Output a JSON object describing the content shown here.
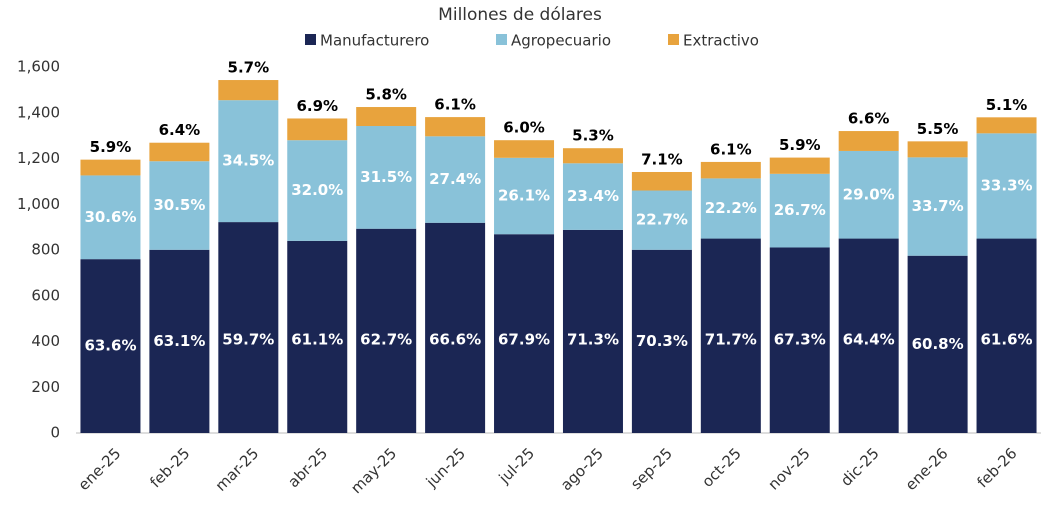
{
  "chart_data": {
    "type": "stacked_bar",
    "title": "Millones de dólares",
    "categories": [
      "ene-25",
      "feb-25",
      "mar-25",
      "abr-25",
      "may-25",
      "jun-25",
      "jul-25",
      "ago-25",
      "sep-25",
      "oct-25",
      "nov-25",
      "dic-25",
      "ene-26",
      "feb-26"
    ],
    "series": [
      {
        "name": "Manufacturero",
        "color": "#1b2654",
        "values": [
          760,
          801,
          922,
          840,
          893,
          919,
          869,
          888,
          801,
          850,
          811,
          850,
          775,
          850
        ],
        "shares": [
          "63.6%",
          "63.1%",
          "59.7%",
          "61.1%",
          "62.7%",
          "66.6%",
          "67.9%",
          "71.3%",
          "70.3%",
          "71.7%",
          "67.3%",
          "64.4%",
          "60.8%",
          "61.6%"
        ]
      },
      {
        "name": "Agropecuario",
        "color": "#89c2d9",
        "values": [
          366,
          387,
          533,
          440,
          449,
          378,
          334,
          291,
          259,
          263,
          322,
          383,
          430,
          460
        ],
        "shares": [
          "30.6%",
          "30.5%",
          "34.5%",
          "32.0%",
          "31.5%",
          "27.4%",
          "26.1%",
          "23.4%",
          "22.7%",
          "22.2%",
          "26.7%",
          "29.0%",
          "33.7%",
          "33.3%"
        ]
      },
      {
        "name": "Extractivo",
        "color": "#e8a33d",
        "values": [
          69,
          81,
          88,
          95,
          83,
          84,
          77,
          66,
          81,
          72,
          71,
          87,
          70,
          70
        ],
        "shares": [
          "5.9%",
          "6.4%",
          "5.7%",
          "6.9%",
          "5.8%",
          "6.1%",
          "6.0%",
          "5.3%",
          "7.1%",
          "6.1%",
          "5.9%",
          "6.6%",
          "5.5%",
          "5.1%"
        ]
      }
    ],
    "ylim": [
      0,
      1600
    ],
    "yticks": [
      0,
      200,
      400,
      600,
      800,
      {
        "value": 1000,
        "label": "1,000"
      },
      {
        "value": 1200,
        "label": "1,200"
      },
      {
        "value": 1400,
        "label": "1,400"
      },
      {
        "value": 1600,
        "label": "1,600"
      }
    ],
    "grid": false
  }
}
